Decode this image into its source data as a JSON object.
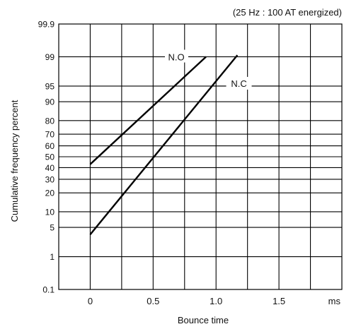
{
  "chart_data": {
    "type": "line",
    "annotation": "(25 Hz : 100 AT energized)",
    "xlabel": "Bounce time",
    "ylabel": "Cumulative frequency percent",
    "x_unit": "ms",
    "x_ticks": [
      "0",
      "0.5",
      "1.0",
      "1.5"
    ],
    "x_tick_values": [
      0,
      0.5,
      1.0,
      1.5
    ],
    "xlim": [
      -0.25,
      2.0
    ],
    "y_ticks": [
      "0.1",
      "1",
      "5",
      "10",
      "20",
      "30",
      "40",
      "50",
      "60",
      "70",
      "80",
      "90",
      "95",
      "99",
      "99.9"
    ],
    "y_tick_values": [
      0.1,
      1,
      5,
      10,
      20,
      30,
      40,
      50,
      60,
      70,
      80,
      90,
      95,
      99,
      99.9
    ],
    "ylim": [
      0.1,
      99.9
    ],
    "scale": "normal-probability",
    "grid": true,
    "series": [
      {
        "name": "N.O",
        "x": [
          0.0,
          0.92
        ],
        "y": [
          43,
          99
        ]
      },
      {
        "name": "N.C",
        "x": [
          0.0,
          1.17
        ],
        "y": [
          3.5,
          99.1
        ]
      }
    ]
  }
}
